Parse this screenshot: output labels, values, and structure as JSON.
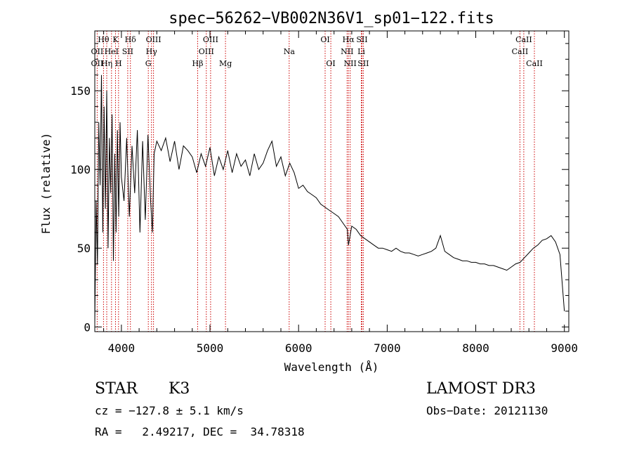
{
  "chart_data": {
    "type": "line",
    "title": "spec−56262−VB002N36V1_sp01−122.fits",
    "xlabel": "Wavelength (Å)",
    "ylabel": "Flux (relative)",
    "xlim": [
      3700,
      9050
    ],
    "ylim": [
      -3,
      188
    ],
    "x_ticks": [
      {
        "value": 4000,
        "label": "4000"
      },
      {
        "value": 5000,
        "label": "5000"
      },
      {
        "value": 6000,
        "label": "6000"
      },
      {
        "value": 7000,
        "label": "7000"
      },
      {
        "value": 8000,
        "label": "8000"
      },
      {
        "value": 9000,
        "label": "9000"
      }
    ],
    "y_ticks": [
      {
        "value": 0,
        "label": "0"
      },
      {
        "value": 50,
        "label": "50"
      },
      {
        "value": 100,
        "label": "100"
      },
      {
        "value": 150,
        "label": "150"
      }
    ],
    "series": [
      {
        "name": "spectrum",
        "x": [
          3700,
          3715,
          3730,
          3745,
          3760,
          3775,
          3790,
          3805,
          3820,
          3835,
          3850,
          3865,
          3880,
          3895,
          3910,
          3925,
          3940,
          3955,
          3970,
          3985,
          4000,
          4030,
          4060,
          4090,
          4120,
          4150,
          4180,
          4210,
          4240,
          4270,
          4300,
          4330,
          4350,
          4370,
          4400,
          4450,
          4500,
          4550,
          4600,
          4650,
          4700,
          4750,
          4800,
          4850,
          4900,
          4950,
          5000,
          5050,
          5100,
          5150,
          5200,
          5250,
          5300,
          5350,
          5400,
          5450,
          5500,
          5550,
          5600,
          5650,
          5700,
          5750,
          5800,
          5850,
          5900,
          5950,
          6000,
          6050,
          6100,
          6150,
          6200,
          6250,
          6300,
          6350,
          6400,
          6450,
          6500,
          6550,
          6563,
          6600,
          6650,
          6700,
          6750,
          6800,
          6850,
          6900,
          6950,
          7000,
          7050,
          7100,
          7150,
          7200,
          7250,
          7300,
          7350,
          7400,
          7450,
          7500,
          7550,
          7600,
          7650,
          7700,
          7750,
          7800,
          7850,
          7900,
          7950,
          8000,
          8050,
          8100,
          8150,
          8200,
          8250,
          8300,
          8350,
          8400,
          8450,
          8500,
          8550,
          8600,
          8650,
          8700,
          8750,
          8800,
          8850,
          8900,
          8950,
          9000
        ],
        "y": [
          2,
          80,
          40,
          130,
          90,
          160,
          60,
          140,
          75,
          150,
          50,
          120,
          85,
          135,
          42,
          110,
          60,
          125,
          70,
          130,
          95,
          80,
          120,
          70,
          115,
          85,
          125,
          60,
          118,
          68,
          122,
          80,
          60,
          110,
          118,
          112,
          120,
          105,
          118,
          100,
          115,
          112,
          108,
          98,
          110,
          102,
          114,
          96,
          108,
          100,
          112,
          98,
          110,
          102,
          106,
          96,
          110,
          100,
          104,
          112,
          118,
          102,
          108,
          96,
          104,
          98,
          88,
          90,
          86,
          84,
          82,
          78,
          76,
          74,
          72,
          70,
          66,
          62,
          52,
          64,
          62,
          58,
          56,
          54,
          52,
          50,
          50,
          49,
          48,
          50,
          48,
          47,
          47,
          46,
          45,
          46,
          47,
          48,
          50,
          58,
          48,
          46,
          44,
          43,
          42,
          42,
          41,
          41,
          40,
          40,
          39,
          39,
          38,
          37,
          36,
          38,
          40,
          41,
          44,
          47,
          50,
          52,
          55,
          56,
          58,
          54,
          46,
          10
        ]
      }
    ],
    "lines": [
      {
        "name": "O II",
        "wavelength": 3727
      },
      {
        "name": "Hθ",
        "wavelength": 3798
      },
      {
        "name": "Hη",
        "wavelength": 3835
      },
      {
        "name": "He I",
        "wavelength": 3889
      },
      {
        "name": "K",
        "wavelength": 3934
      },
      {
        "name": "H",
        "wavelength": 3968
      },
      {
        "name": "S II",
        "wavelength": 4072
      },
      {
        "name": "Hδ",
        "wavelength": 4102
      },
      {
        "name": "G",
        "wavelength": 4304
      },
      {
        "name": "Hγ",
        "wavelength": 4340
      },
      {
        "name": "O III",
        "wavelength": 4363
      },
      {
        "name": "Hβ",
        "wavelength": 4861
      },
      {
        "name": "O III",
        "wavelength": 4959
      },
      {
        "name": "O III",
        "wavelength": 5007
      },
      {
        "name": "Mg",
        "wavelength": 5175
      },
      {
        "name": "Na",
        "wavelength": 5894
      },
      {
        "name": "O I",
        "wavelength": 6300
      },
      {
        "name": "O I",
        "wavelength": 6364
      },
      {
        "name": "N II",
        "wavelength": 6548
      },
      {
        "name": "Hα",
        "wavelength": 6563
      },
      {
        "name": "N II",
        "wavelength": 6583
      },
      {
        "name": "Li",
        "wavelength": 6708
      },
      {
        "name": "S II",
        "wavelength": 6716
      },
      {
        "name": "S II",
        "wavelength": 6731
      },
      {
        "name": "Ca II",
        "wavelength": 8498
      },
      {
        "name": "Ca II",
        "wavelength": 8542
      },
      {
        "name": "Ca II",
        "wavelength": 8662
      }
    ],
    "line_labels": [
      {
        "text": "Hθ",
        "wavelength": 3798,
        "row": 0
      },
      {
        "text": "K",
        "wavelength": 3934,
        "row": 0
      },
      {
        "text": "Hδ",
        "wavelength": 4102,
        "row": 0
      },
      {
        "text": "OIII",
        "wavelength": 4363,
        "row": 0
      },
      {
        "text": "OIII",
        "wavelength": 5007,
        "row": 0
      },
      {
        "text": "OI",
        "wavelength": 6300,
        "row": 0
      },
      {
        "text": "Hα",
        "wavelength": 6563,
        "row": 0
      },
      {
        "text": "SII",
        "wavelength": 6716,
        "row": 0
      },
      {
        "text": "CaII",
        "wavelength": 8542,
        "row": 0
      },
      {
        "text": "OII",
        "wavelength": 3727,
        "row": 1
      },
      {
        "text": "HeI",
        "wavelength": 3889,
        "row": 1
      },
      {
        "text": "SII",
        "wavelength": 4072,
        "row": 1
      },
      {
        "text": "Hγ",
        "wavelength": 4340,
        "row": 1
      },
      {
        "text": "OIII",
        "wavelength": 4959,
        "row": 1
      },
      {
        "text": "Na",
        "wavelength": 5894,
        "row": 1
      },
      {
        "text": "NII",
        "wavelength": 6548,
        "row": 1
      },
      {
        "text": "Li",
        "wavelength": 6708,
        "row": 1
      },
      {
        "text": "CaII",
        "wavelength": 8498,
        "row": 1
      },
      {
        "text": "OII",
        "wavelength": 3727,
        "row": 2
      },
      {
        "text": "Hη",
        "wavelength": 3835,
        "row": 2
      },
      {
        "text": "H",
        "wavelength": 3968,
        "row": 2
      },
      {
        "text": "G",
        "wavelength": 4304,
        "row": 2
      },
      {
        "text": "Hβ",
        "wavelength": 4861,
        "row": 2
      },
      {
        "text": "Mg",
        "wavelength": 5175,
        "row": 2
      },
      {
        "text": "OI",
        "wavelength": 6364,
        "row": 2
      },
      {
        "text": "NII",
        "wavelength": 6583,
        "row": 2
      },
      {
        "text": "SII",
        "wavelength": 6731,
        "row": 2
      },
      {
        "text": "CaII",
        "wavelength": 8662,
        "row": 2
      }
    ],
    "line_color": "#cc0000",
    "grid": false
  },
  "info": {
    "class": "STAR",
    "subclass": "K3",
    "survey": "LAMOST DR3",
    "cz": "cz = −127.8 ± 5.1 km/s",
    "obs_date": "Obs−Date: 20121130",
    "coords": "RA =   2.49217, DEC =  34.78318"
  }
}
